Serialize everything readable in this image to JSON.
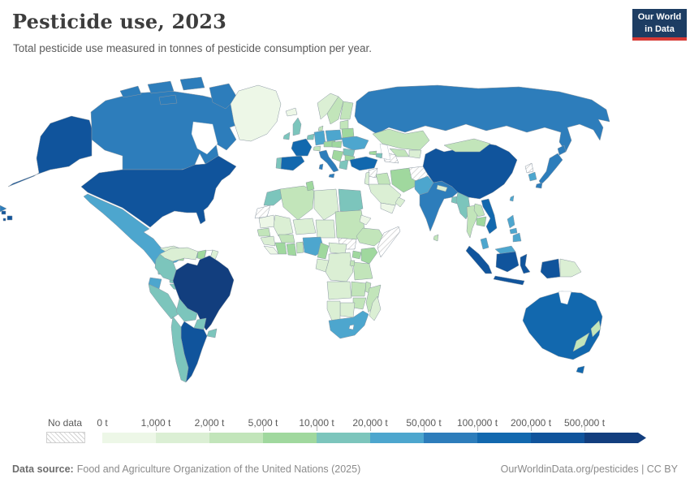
{
  "header": {
    "title": "Pesticide use, 2023",
    "subtitle": "Total pesticide use measured in tonnes of pesticide consumption per year.",
    "logo_line1": "Our World",
    "logo_line2": "in Data",
    "logo_bg": "#1d3d63",
    "logo_accent": "#d73a35"
  },
  "chart_data": {
    "type": "choropleth",
    "title": "Pesticide use, 2023",
    "subtitle": "Total pesticide use measured in tonnes of pesticide consumption per year.",
    "unit": "tonnes",
    "legend": {
      "no_data_label": "No data",
      "ticks": [
        "0 t",
        "1,000 t",
        "2,000 t",
        "5,000 t",
        "10,000 t",
        "20,000 t",
        "50,000 t",
        "100,000 t",
        "200,000 t",
        "500,000 t"
      ],
      "colors": [
        "#edf7e7",
        "#dbefd4",
        "#c2e5ba",
        "#a0d89e",
        "#7cc5bc",
        "#4da6ce",
        "#2d7dbb",
        "#1268ae",
        "#10549c",
        "#123e7e"
      ]
    },
    "no_data_value": "no-data",
    "countries": {
      "united-states": 9,
      "canada": 7,
      "mexico": 6,
      "greenland": 1,
      "guatemala": 5,
      "honduras": 4,
      "nicaragua": 5,
      "costa-rica": 5,
      "panama": 5,
      "cuba": 2,
      "dominican-republic": 5,
      "jamaica": 4,
      "venezuela": 2,
      "guyana": 4,
      "suriname": "white",
      "french-guiana": 2,
      "colombia": 5,
      "ecuador": 6,
      "peru": 5,
      "brazil": 10,
      "bolivia": 5,
      "paraguay": 5,
      "uruguay": 5,
      "argentina": 9,
      "chile": 5,
      "iceland": 1,
      "ireland": 5,
      "united-kingdom": 5,
      "norway": 2,
      "sweden": 3,
      "finland": 3,
      "denmark": 3,
      "portugal": 5,
      "spain": 8,
      "france": 8,
      "benelux": 5,
      "germany": 6,
      "switzerland": 3,
      "italy": 7,
      "austria-czechia": 4,
      "poland": 6,
      "baltics": 3,
      "belarus": 4,
      "ukraine": 6,
      "romania": 5,
      "hungary-slovakia": 4,
      "balkans": 4,
      "greece": 5,
      "bulgaria": 4,
      "russia": 7,
      "kazakhstan": 3,
      "uzbekistan": 3,
      "turkmenistan": "no-data",
      "kyrgyzstan-tajikistan": 2,
      "georgia": 4,
      "azerbaijan": 5,
      "turkey": 8,
      "syria": "no-data",
      "levant": 2,
      "iraq": 3,
      "saudi-arabia": 2,
      "yemen": 1,
      "oman": 2,
      "iran": 4,
      "afghanistan": "no-data",
      "pakistan": 6,
      "india": 7,
      "nepal": 2,
      "sri-lanka": 3,
      "bangladesh": 5,
      "china": 9,
      "mongolia": 3,
      "north-korea": "no-data",
      "south-korea": 6,
      "japan": 7,
      "taiwan": 6,
      "myanmar": 5,
      "thailand": 3,
      "laos": 3,
      "cambodia": 4,
      "vietnam": 8,
      "malaysia": 6,
      "indonesia": 9,
      "papua-new-guinea": 2,
      "philippines": 6,
      "australia": 8,
      "new-zealand": 3,
      "morocco": 5,
      "western-sahara": "no-data",
      "algeria": 3,
      "tunisia": 4,
      "libya": 2,
      "egypt": 5,
      "mauritania": 1,
      "mali": 2,
      "niger": 2,
      "chad": 2,
      "sudan": 3,
      "eritrea": 1,
      "ethiopia": 3,
      "somalia": "no-data",
      "south-sudan": "no-data",
      "senegal": 3,
      "guinea": 2,
      "sierra-leone-liberia": 1,
      "cote-divoire": 4,
      "ghana": 4,
      "togo-benin": 3,
      "burkina-faso": 3,
      "nigeria": 6,
      "cameroon": 4,
      "central-african-republic": 2,
      "congo": 2,
      "dr-congo": 2,
      "uganda": 4,
      "kenya": 4,
      "tanzania": 3,
      "rwanda-burundi": 3,
      "angola": 2,
      "zambia": 3,
      "malawi": 3,
      "mozambique": 3,
      "zimbabwe": 3,
      "botswana": 2,
      "namibia": 2,
      "south-africa": 6,
      "lesotho": "white",
      "madagascar": 2
    }
  },
  "footer": {
    "datasource_label": "Data source:",
    "datasource_text": "Food and Agriculture Organization of the United Nations (2025)",
    "link_text": "OurWorldinData.org/pesticides | CC BY"
  }
}
